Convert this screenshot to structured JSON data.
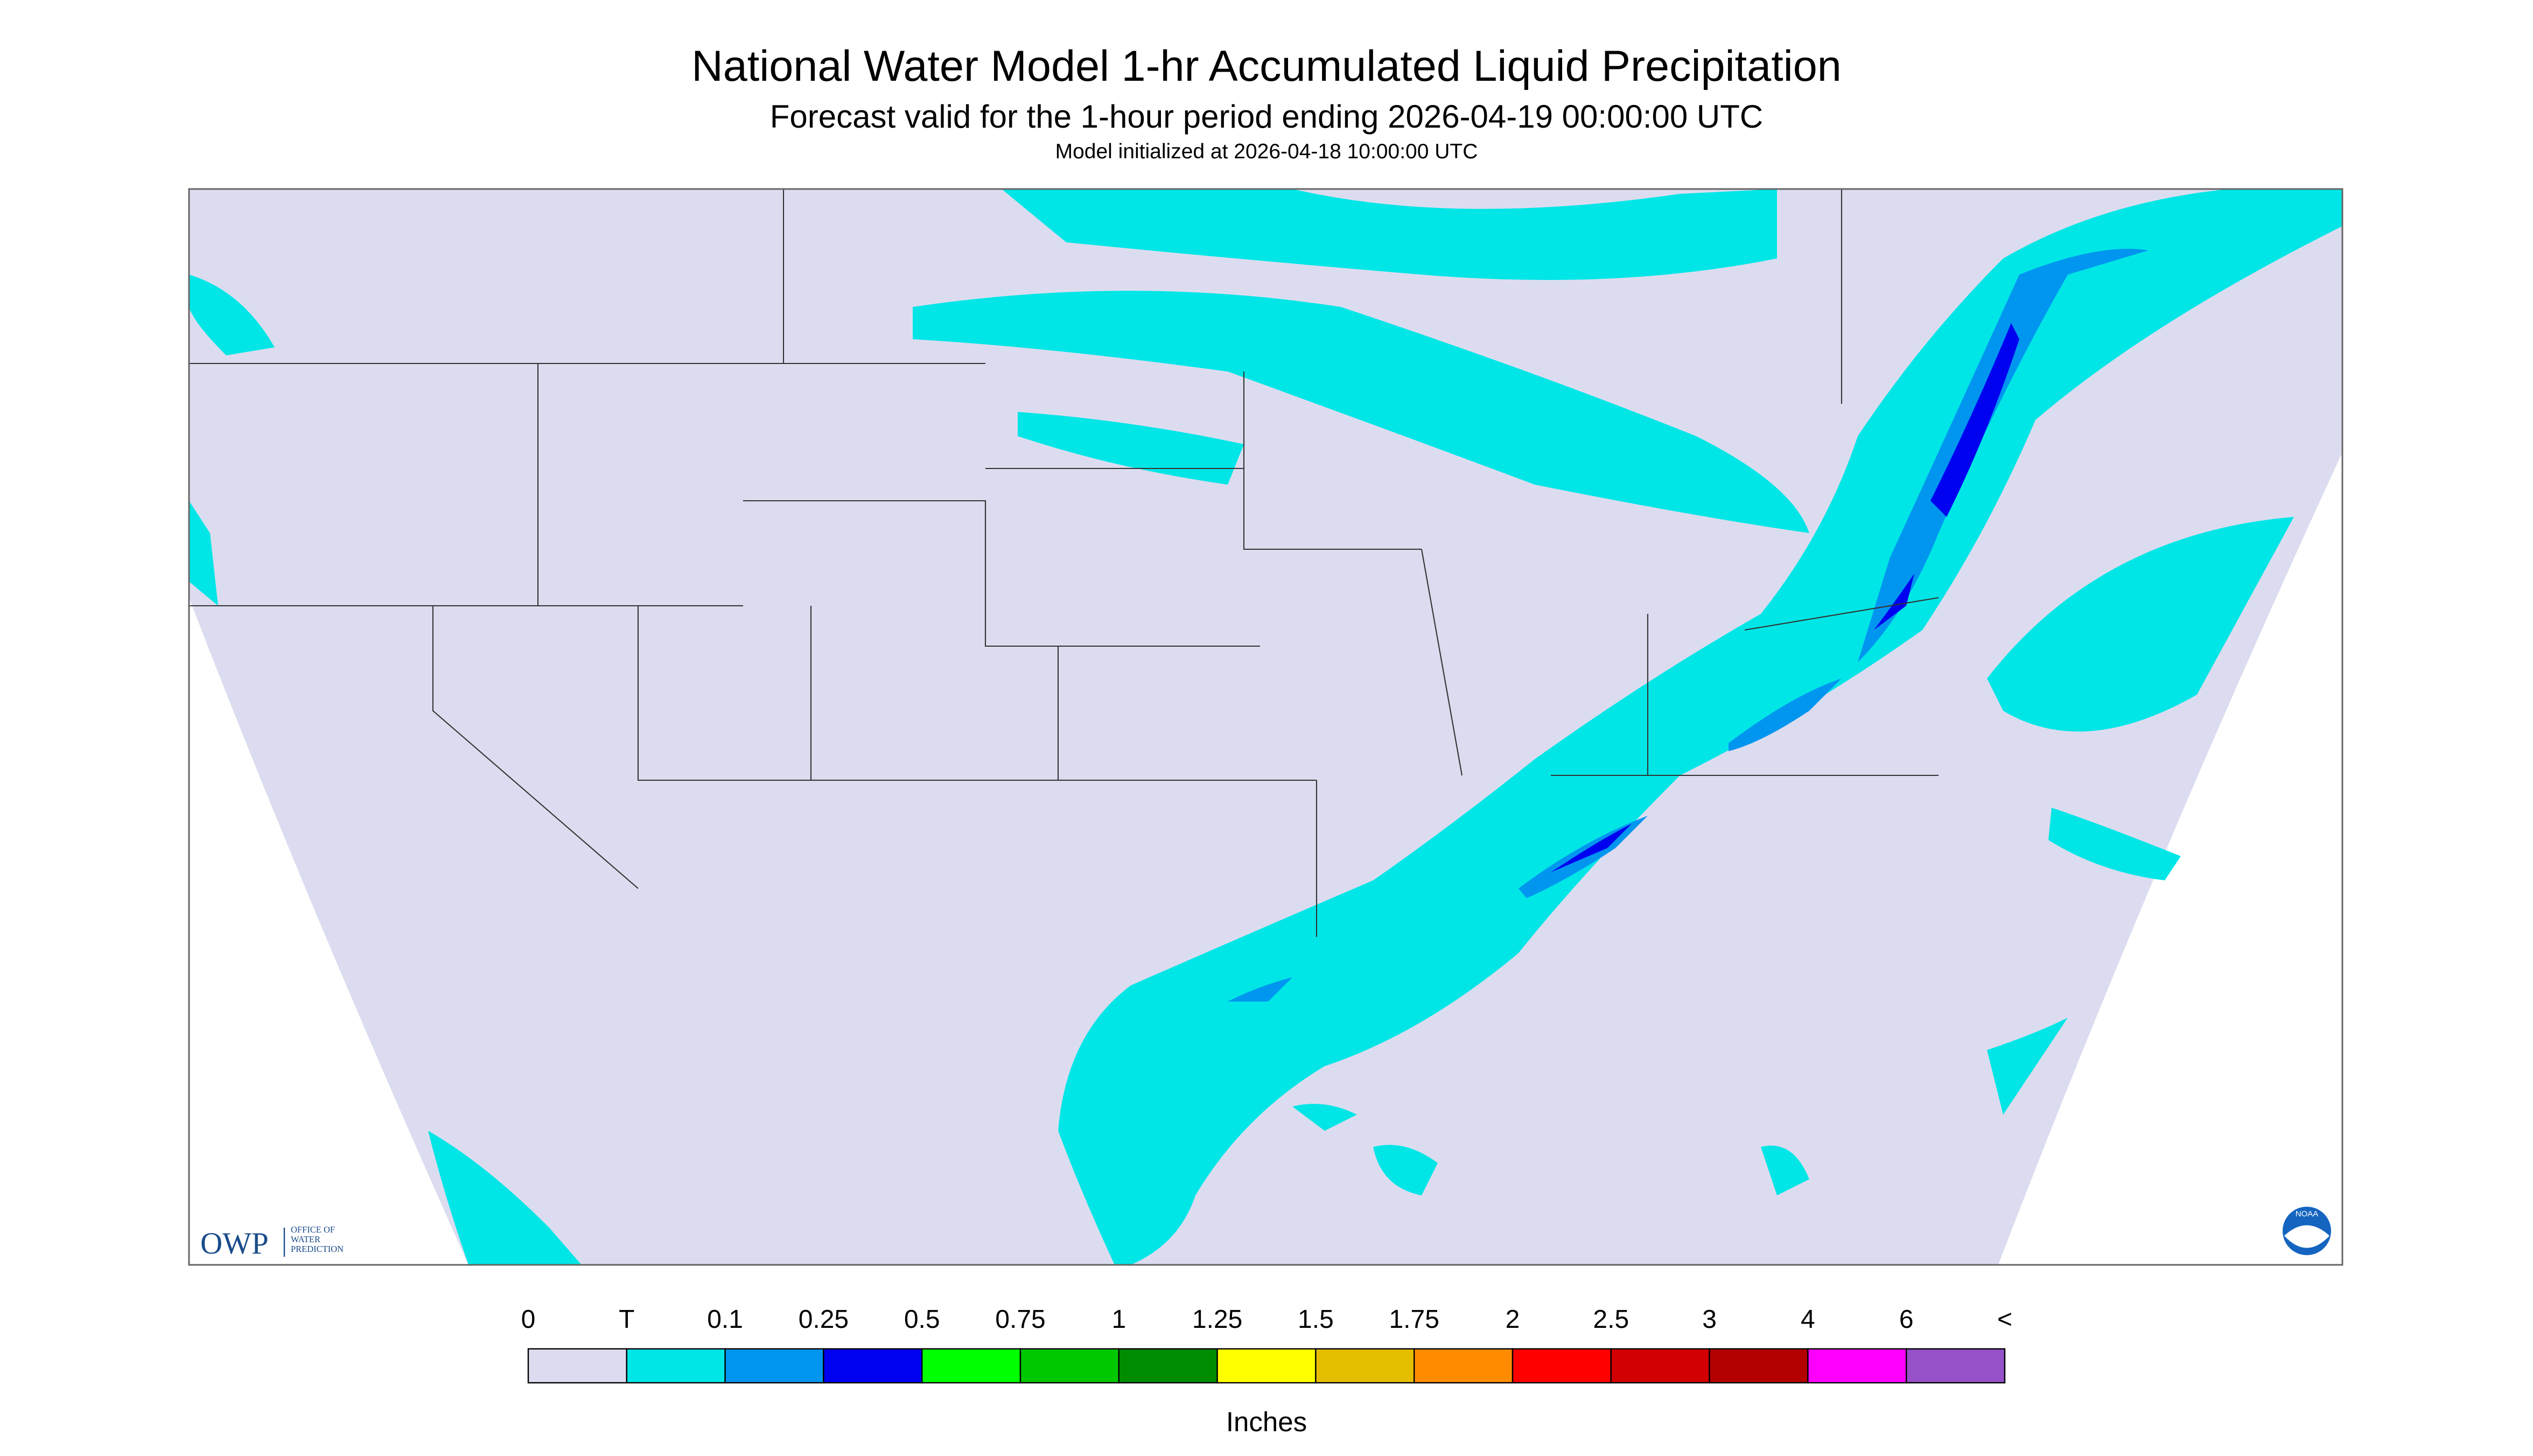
{
  "header": {
    "title": "National Water Model 1-hr Accumulated Liquid Precipitation",
    "subtitle": "Forecast valid for the 1-hour period ending 2026-04-19 00:00:00 UTC",
    "note": "Model initialized at 2026-04-18 10:00:00 UTC"
  },
  "logos": {
    "owp": "OWP",
    "owp_name": [
      "OFFICE OF",
      "WATER",
      "PREDICTION"
    ],
    "noaa": "NOAA"
  },
  "legend": {
    "labels": [
      "0",
      "T",
      "0.1",
      "0.25",
      "0.5",
      "0.75",
      "1",
      "1.25",
      "1.5",
      "1.75",
      "2",
      "2.5",
      "3",
      "4",
      "6",
      "<"
    ],
    "colors": [
      "#dcdcf0",
      "#00e6e6",
      "#0096f0",
      "#0000f0",
      "#00ff00",
      "#00c800",
      "#008c00",
      "#ffff00",
      "#e6be00",
      "#ff8c00",
      "#ff0000",
      "#d20000",
      "#b40000",
      "#ff00ff",
      "#9650c8"
    ],
    "unit": "Inches"
  }
}
